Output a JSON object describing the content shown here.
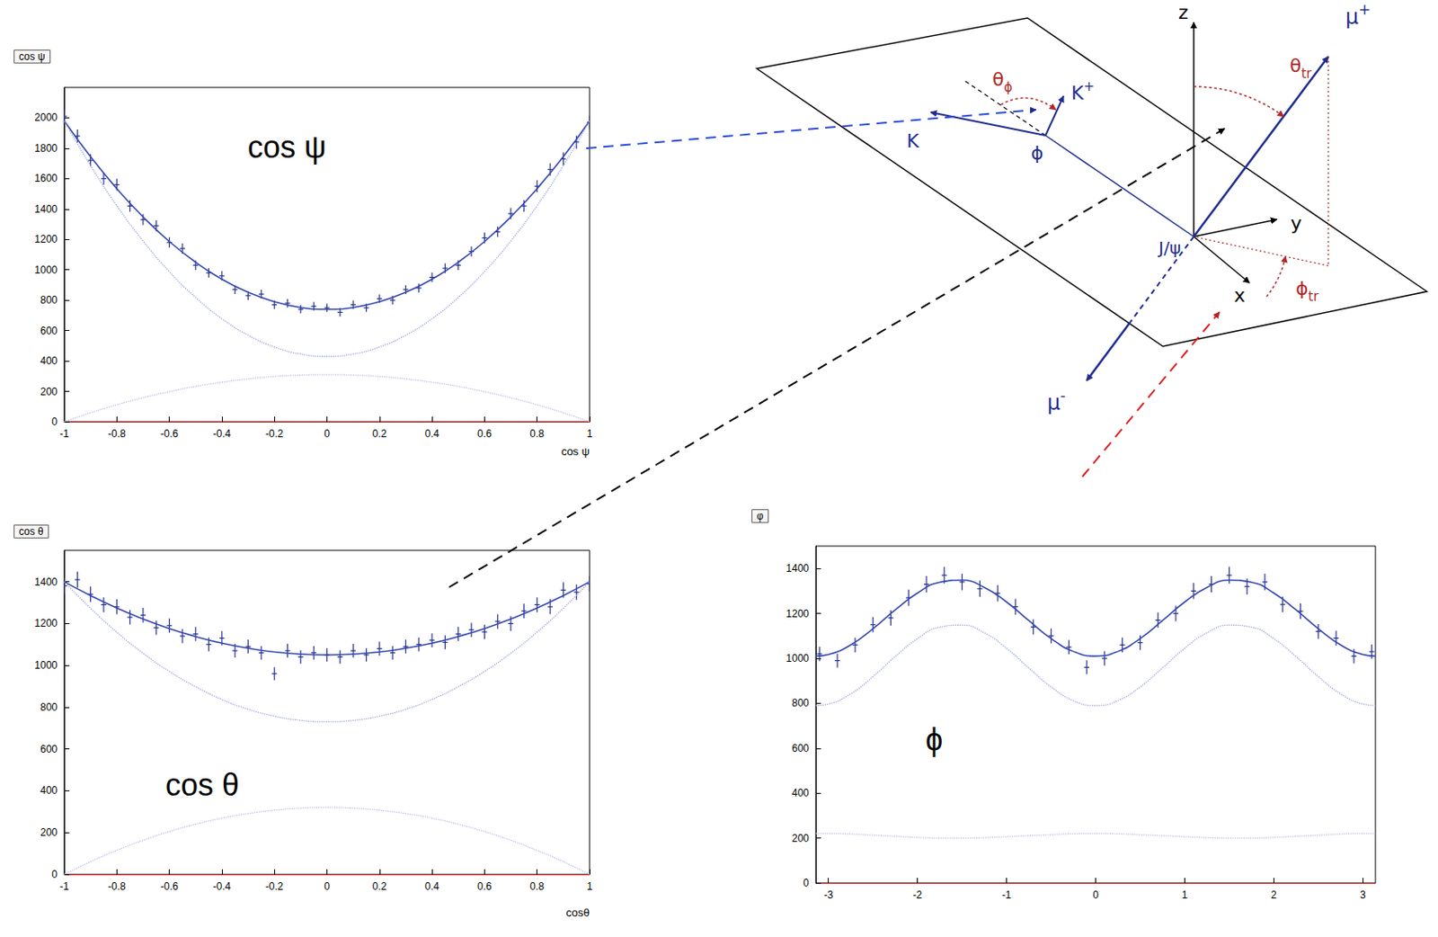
{
  "chart_data": [
    {
      "type": "scatter",
      "title": "cos ψ",
      "annotation": "cos ψ",
      "xlabel": "cos ψ",
      "xlim": [
        -1,
        1
      ],
      "xticks": [
        -1,
        -0.8,
        -0.6,
        -0.4,
        -0.2,
        0,
        0.2,
        0.4,
        0.6,
        0.8,
        1
      ],
      "ylim": [
        0,
        2200
      ],
      "yticks": [
        0,
        200,
        400,
        600,
        800,
        1000,
        1200,
        1400,
        1600,
        1800,
        2000
      ],
      "series": [
        {
          "type": "scatter",
          "marker": "cross",
          "color": "#25308f",
          "x": [
            -1,
            -0.95,
            -0.9,
            -0.85,
            -0.8,
            -0.75,
            -0.7,
            -0.65,
            -0.6,
            -0.55,
            -0.5,
            -0.45,
            -0.4,
            -0.35,
            -0.3,
            -0.25,
            -0.2,
            -0.15,
            -0.1,
            -0.05,
            0,
            0.05,
            0.1,
            0.15,
            0.2,
            0.25,
            0.3,
            0.35,
            0.4,
            0.45,
            0.5,
            0.55,
            0.6,
            0.65,
            0.7,
            0.75,
            0.8,
            0.85,
            0.9,
            0.95,
            1
          ],
          "values": [
            2010,
            1880,
            1720,
            1600,
            1560,
            1420,
            1330,
            1290,
            1180,
            1140,
            1030,
            980,
            960,
            870,
            830,
            840,
            770,
            780,
            740,
            760,
            750,
            720,
            770,
            750,
            810,
            800,
            870,
            880,
            950,
            1010,
            1030,
            1120,
            1210,
            1250,
            1370,
            1420,
            1550,
            1660,
            1730,
            1840,
            1970
          ],
          "errors": [
            45,
            43,
            41,
            40,
            39,
            38,
            36,
            36,
            34,
            34,
            32,
            31,
            31,
            29,
            29,
            29,
            28,
            28,
            27,
            28,
            27,
            27,
            28,
            27,
            28,
            28,
            29,
            30,
            31,
            32,
            32,
            33,
            35,
            35,
            37,
            38,
            39,
            41,
            42,
            43,
            44
          ]
        },
        {
          "type": "line",
          "line_style": "solid",
          "color": "#3346b0",
          "x": [
            -1,
            -0.9,
            -0.8,
            -0.7,
            -0.6,
            -0.5,
            -0.4,
            -0.3,
            -0.2,
            -0.1,
            0,
            0.1,
            0.2,
            0.3,
            0.4,
            0.5,
            0.6,
            0.7,
            0.8,
            0.9,
            1
          ],
          "values": [
            1980,
            1744,
            1534,
            1348,
            1186,
            1050,
            938,
            852,
            790,
            752,
            740,
            752,
            790,
            852,
            938,
            1050,
            1186,
            1348,
            1534,
            1744,
            1980
          ]
        },
        {
          "type": "line",
          "line_style": "dotted",
          "color": "#9aa3dd",
          "x": [
            -1,
            -0.9,
            -0.8,
            -0.7,
            -0.6,
            -0.5,
            -0.4,
            -0.3,
            -0.2,
            -0.1,
            0,
            0.1,
            0.2,
            0.3,
            0.4,
            0.5,
            0.6,
            0.7,
            0.8,
            0.9,
            1
          ],
          "values": [
            1980,
            1686,
            1422,
            1190,
            988,
            818,
            678,
            570,
            492,
            446,
            430,
            446,
            492,
            570,
            678,
            818,
            988,
            1190,
            1422,
            1686,
            1980
          ]
        },
        {
          "type": "line",
          "line_style": "dotted",
          "color": "#b7bde8",
          "x": [
            -1,
            -0.9,
            -0.8,
            -0.7,
            -0.6,
            -0.5,
            -0.4,
            -0.3,
            -0.2,
            -0.1,
            0,
            0.1,
            0.2,
            0.3,
            0.4,
            0.5,
            0.6,
            0.7,
            0.8,
            0.9,
            1
          ],
          "values": [
            0,
            59,
            112,
            158,
            198,
            233,
            260,
            282,
            298,
            307,
            310,
            307,
            298,
            282,
            260,
            233,
            198,
            158,
            112,
            59,
            0
          ]
        }
      ]
    },
    {
      "type": "scatter",
      "title": "cos θ",
      "annotation": "cos θ",
      "xlabel": "cosθ",
      "xlim": [
        -1,
        1
      ],
      "xticks": [
        -1,
        -0.8,
        -0.6,
        -0.4,
        -0.2,
        0,
        0.2,
        0.4,
        0.6,
        0.8,
        1
      ],
      "ylim": [
        0,
        1550
      ],
      "yticks": [
        0,
        200,
        400,
        600,
        800,
        1000,
        1200,
        1400
      ],
      "series": [
        {
          "type": "scatter",
          "marker": "cross",
          "color": "#25308f",
          "x": [
            -1,
            -0.95,
            -0.9,
            -0.85,
            -0.8,
            -0.75,
            -0.7,
            -0.65,
            -0.6,
            -0.55,
            -0.5,
            -0.45,
            -0.4,
            -0.35,
            -0.3,
            -0.25,
            -0.2,
            -0.15,
            -0.1,
            -0.05,
            0,
            0.05,
            0.1,
            0.15,
            0.2,
            0.25,
            0.3,
            0.35,
            0.4,
            0.45,
            0.5,
            0.55,
            0.6,
            0.65,
            0.7,
            0.75,
            0.8,
            0.85,
            0.9,
            0.95,
            1
          ],
          "values": [
            1380,
            1410,
            1340,
            1290,
            1280,
            1230,
            1240,
            1180,
            1190,
            1140,
            1150,
            1100,
            1130,
            1070,
            1090,
            1060,
            960,
            1070,
            1040,
            1060,
            1050,
            1040,
            1070,
            1050,
            1080,
            1060,
            1090,
            1100,
            1120,
            1110,
            1150,
            1170,
            1160,
            1210,
            1200,
            1260,
            1290,
            1280,
            1360,
            1350,
            1390
          ],
          "errors": [
            37,
            38,
            37,
            36,
            36,
            35,
            35,
            34,
            34,
            34,
            34,
            33,
            34,
            33,
            33,
            33,
            31,
            33,
            32,
            33,
            32,
            32,
            33,
            32,
            33,
            33,
            33,
            33,
            33,
            33,
            34,
            34,
            34,
            35,
            35,
            35,
            36,
            36,
            37,
            37,
            37
          ]
        },
        {
          "type": "line",
          "line_style": "solid",
          "color": "#3346b0",
          "x": [
            -1,
            -0.9,
            -0.8,
            -0.7,
            -0.6,
            -0.5,
            -0.4,
            -0.3,
            -0.2,
            -0.1,
            0,
            0.1,
            0.2,
            0.3,
            0.4,
            0.5,
            0.6,
            0.7,
            0.8,
            0.9,
            1
          ],
          "values": [
            1400,
            1334,
            1274,
            1222,
            1176,
            1138,
            1106,
            1082,
            1064,
            1054,
            1050,
            1054,
            1064,
            1082,
            1106,
            1138,
            1176,
            1222,
            1274,
            1334,
            1400
          ]
        },
        {
          "type": "line",
          "line_style": "dotted",
          "color": "#9aa3dd",
          "x": [
            -1,
            -0.9,
            -0.8,
            -0.7,
            -0.6,
            -0.5,
            -0.4,
            -0.3,
            -0.2,
            -0.1,
            0,
            0.1,
            0.2,
            0.3,
            0.4,
            0.5,
            0.6,
            0.7,
            0.8,
            0.9,
            1
          ],
          "values": [
            1400,
            1273,
            1159,
            1058,
            971,
            898,
            837,
            790,
            757,
            737,
            730,
            737,
            757,
            790,
            837,
            898,
            971,
            1058,
            1159,
            1273,
            1400
          ]
        },
        {
          "type": "line",
          "line_style": "dotted",
          "color": "#b7bde8",
          "x": [
            -1,
            -0.9,
            -0.8,
            -0.7,
            -0.6,
            -0.5,
            -0.4,
            -0.3,
            -0.2,
            -0.1,
            0,
            0.1,
            0.2,
            0.3,
            0.4,
            0.5,
            0.6,
            0.7,
            0.8,
            0.9,
            1
          ],
          "values": [
            0,
            61,
            115,
            163,
            205,
            240,
            269,
            291,
            307,
            317,
            320,
            317,
            307,
            291,
            269,
            240,
            205,
            163,
            115,
            61,
            0
          ]
        }
      ]
    },
    {
      "type": "scatter",
      "title": "φ",
      "annotation": "ϕ",
      "xlim": [
        -3.1416,
        3.1416
      ],
      "xticks": [
        -3,
        -2,
        -1,
        0,
        1,
        2,
        3
      ],
      "ylim": [
        0,
        1500
      ],
      "yticks": [
        0,
        200,
        400,
        600,
        800,
        1000,
        1200,
        1400
      ],
      "series": [
        {
          "type": "scatter",
          "marker": "cross",
          "color": "#25308f",
          "x": [
            -3.1,
            -2.9,
            -2.7,
            -2.5,
            -2.3,
            -2.1,
            -1.9,
            -1.7,
            -1.5,
            -1.3,
            -1.1,
            -0.9,
            -0.7,
            -0.5,
            -0.3,
            -0.1,
            0.1,
            0.3,
            0.5,
            0.7,
            0.9,
            1.1,
            1.3,
            1.5,
            1.7,
            1.9,
            2.1,
            2.3,
            2.5,
            2.7,
            2.9,
            3.1
          ],
          "values": [
            1020,
            990,
            1060,
            1150,
            1180,
            1270,
            1330,
            1370,
            1340,
            1310,
            1290,
            1230,
            1140,
            1100,
            1050,
            960,
            1000,
            1060,
            1070,
            1170,
            1200,
            1300,
            1330,
            1370,
            1320,
            1340,
            1240,
            1210,
            1120,
            1090,
            1010,
            1030
          ],
          "errors": [
            32,
            31,
            33,
            34,
            34,
            36,
            36,
            37,
            37,
            36,
            36,
            35,
            34,
            33,
            32,
            31,
            32,
            33,
            33,
            34,
            35,
            36,
            36,
            37,
            36,
            37,
            35,
            35,
            33,
            33,
            32,
            32
          ]
        },
        {
          "type": "line",
          "line_style": "solid",
          "color": "#3346b0",
          "x": [
            -3.14,
            -3,
            -2.75,
            -2.5,
            -2.25,
            -2,
            -1.75,
            -1.5,
            -1.25,
            -1,
            -0.75,
            -0.5,
            -0.25,
            0,
            0.25,
            0.5,
            0.75,
            1,
            1.25,
            1.5,
            1.75,
            2,
            2.25,
            2.5,
            2.75,
            3,
            3.14
          ],
          "values": [
            1010,
            1017,
            1060,
            1132,
            1216,
            1291,
            1339,
            1348,
            1316,
            1251,
            1168,
            1088,
            1031,
            1010,
            1031,
            1088,
            1168,
            1251,
            1316,
            1348,
            1339,
            1291,
            1216,
            1132,
            1060,
            1017,
            1010
          ]
        },
        {
          "type": "line",
          "line_style": "dotted",
          "color": "#9aa3dd",
          "x": [
            -3.14,
            -3,
            -2.75,
            -2.5,
            -2.25,
            -2,
            -1.75,
            -1.5,
            -1.25,
            -1,
            -0.75,
            -0.5,
            -0.25,
            0,
            0.25,
            0.5,
            0.75,
            1,
            1.25,
            1.5,
            1.75,
            2,
            2.25,
            2.5,
            2.75,
            3,
            3.14
          ],
          "values": [
            790,
            797,
            842,
            919,
            1008,
            1088,
            1139,
            1148,
            1114,
            1045,
            957,
            873,
            812,
            790,
            812,
            873,
            957,
            1045,
            1114,
            1148,
            1139,
            1088,
            1008,
            919,
            842,
            797,
            790
          ]
        },
        {
          "type": "line",
          "line_style": "dotted",
          "color": "#b7bde8",
          "x": [
            -3.14,
            -3,
            -2.75,
            -2.5,
            -2.25,
            -2,
            -1.75,
            -1.5,
            -1.25,
            -1,
            -0.75,
            -0.5,
            -0.25,
            0,
            0.25,
            0.5,
            0.75,
            1,
            1.25,
            1.5,
            1.75,
            2,
            2.25,
            2.5,
            2.75,
            3,
            3.14
          ],
          "values": [
            220,
            220,
            218,
            213,
            208,
            203,
            200,
            200,
            202,
            206,
            211,
            215,
            219,
            220,
            219,
            215,
            211,
            206,
            202,
            200,
            200,
            203,
            208,
            213,
            218,
            220,
            220
          ]
        }
      ]
    }
  ],
  "diagram": {
    "labels": {
      "z": {
        "text": "z"
      },
      "mu_plus": {
        "text": "μ",
        "sup": "+"
      },
      "theta_tr": {
        "text": "θ",
        "sub": "tr"
      },
      "theta_phi": {
        "text": "θ",
        "sub": "ϕ"
      },
      "k_plus": {
        "text": "K",
        "sup": "+"
      },
      "k_minus": {
        "text": "K"
      },
      "phi": {
        "text": "ϕ"
      },
      "jpsi": {
        "text": "J/ψ"
      },
      "y": {
        "text": "y"
      },
      "x": {
        "text": "x"
      },
      "phi_tr": {
        "text": "ϕ",
        "sub": "tr"
      },
      "mu_minus": {
        "text": "μ",
        "sup": "-"
      }
    }
  }
}
